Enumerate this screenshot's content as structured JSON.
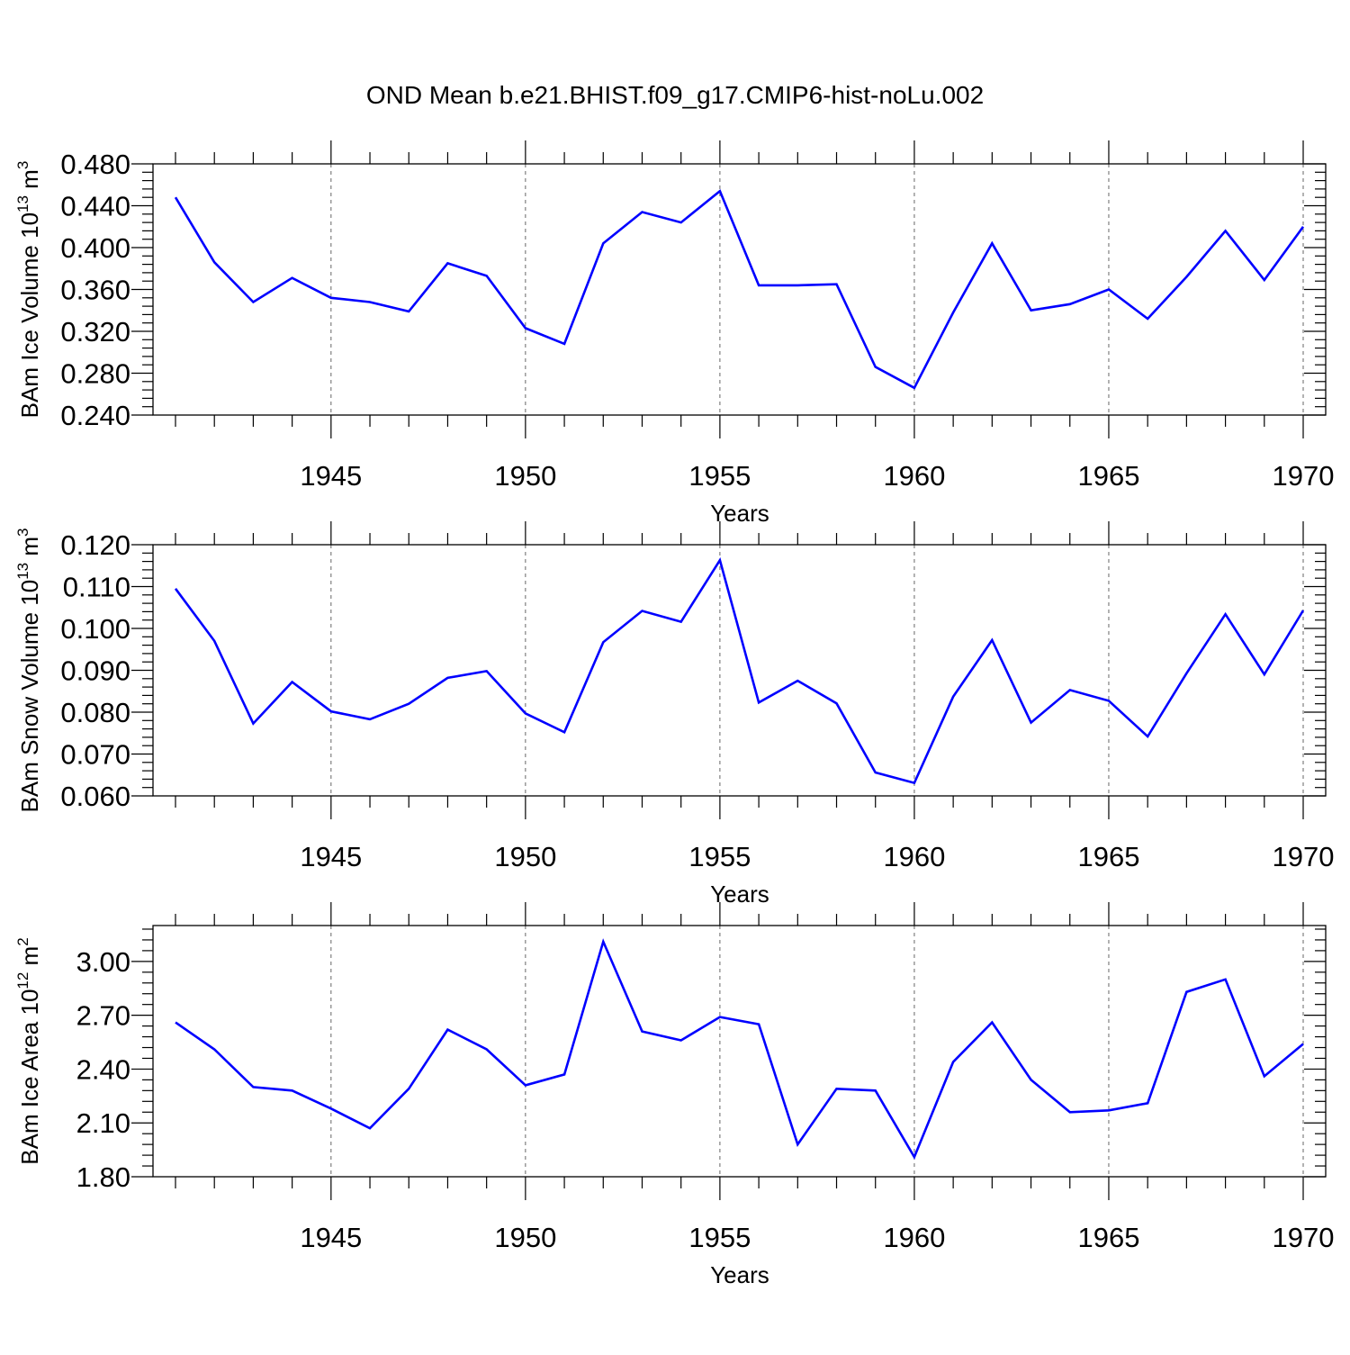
{
  "title": "OND Mean b.e21.BHIST.f09_g17.CMIP6-hist-noLu.002",
  "line_color": "#0000ff",
  "chart_data": [
    {
      "type": "line",
      "ylabel": "BAm Ice Volume 10",
      "ylabel_exp": "13",
      "ylabel_unit": " m",
      "ylabel_unit_exp": "3",
      "xlabel": "Years",
      "xlim": [
        1941,
        1970
      ],
      "ylim": [
        0.24,
        0.48
      ],
      "yticks": [
        "0.240",
        "0.280",
        "0.320",
        "0.360",
        "0.400",
        "0.440",
        "0.480"
      ],
      "ytick_values": [
        0.24,
        0.28,
        0.32,
        0.36,
        0.4,
        0.44,
        0.48
      ],
      "xticks": [
        "1945",
        "1950",
        "1955",
        "1960",
        "1965",
        "1970"
      ],
      "xtick_values": [
        1945,
        1950,
        1955,
        1960,
        1965,
        1970
      ],
      "series": [
        {
          "name": "BAm Ice Volume",
          "x": [
            1941,
            1942,
            1943,
            1944,
            1945,
            1946,
            1947,
            1948,
            1949,
            1950,
            1951,
            1952,
            1953,
            1954,
            1955,
            1956,
            1957,
            1958,
            1959,
            1960,
            1961,
            1962,
            1963,
            1964,
            1965,
            1966,
            1967,
            1968,
            1969,
            1970
          ],
          "values": [
            0.448,
            0.386,
            0.348,
            0.371,
            0.352,
            0.348,
            0.339,
            0.385,
            0.373,
            0.323,
            0.308,
            0.404,
            0.434,
            0.424,
            0.454,
            0.364,
            0.364,
            0.365,
            0.286,
            0.266,
            0.338,
            0.404,
            0.34,
            0.346,
            0.36,
            0.332,
            0.372,
            0.416,
            0.369,
            0.42
          ]
        }
      ]
    },
    {
      "type": "line",
      "ylabel": "BAm Snow Volume 10",
      "ylabel_exp": "13",
      "ylabel_unit": " m",
      "ylabel_unit_exp": "3",
      "xlabel": "Years",
      "xlim": [
        1941,
        1970
      ],
      "ylim": [
        0.06,
        0.12
      ],
      "yticks": [
        "0.060",
        "0.070",
        "0.080",
        "0.090",
        "0.100",
        "0.110",
        "0.120"
      ],
      "ytick_values": [
        0.06,
        0.07,
        0.08,
        0.09,
        0.1,
        0.11,
        0.12
      ],
      "xticks": [
        "1945",
        "1950",
        "1955",
        "1960",
        "1965",
        "1970"
      ],
      "xtick_values": [
        1945,
        1950,
        1955,
        1960,
        1965,
        1970
      ],
      "series": [
        {
          "name": "BAm Snow Volume",
          "x": [
            1941,
            1942,
            1943,
            1944,
            1945,
            1946,
            1947,
            1948,
            1949,
            1950,
            1951,
            1952,
            1953,
            1954,
            1955,
            1956,
            1957,
            1958,
            1959,
            1960,
            1961,
            1962,
            1963,
            1964,
            1965,
            1966,
            1967,
            1968,
            1969,
            1970
          ],
          "values": [
            0.1095,
            0.097,
            0.0773,
            0.0872,
            0.0802,
            0.0783,
            0.082,
            0.0882,
            0.0898,
            0.0797,
            0.0752,
            0.0967,
            0.1042,
            0.1016,
            0.1163,
            0.0823,
            0.0875,
            0.0821,
            0.0656,
            0.0631,
            0.0837,
            0.0972,
            0.0775,
            0.0853,
            0.0827,
            0.0742,
            0.0893,
            0.1034,
            0.089,
            0.1043
          ]
        }
      ]
    },
    {
      "type": "line",
      "ylabel": "BAm Ice Area 10",
      "ylabel_exp": "12",
      "ylabel_unit": " m",
      "ylabel_unit_exp": "2",
      "xlabel": "Years",
      "xlim": [
        1941,
        1970
      ],
      "ylim": [
        1.8,
        3.2
      ],
      "yticks": [
        "1.80",
        "2.10",
        "2.40",
        "2.70",
        "3.00"
      ],
      "ytick_values": [
        1.8,
        2.1,
        2.4,
        2.7,
        3.0
      ],
      "xticks": [
        "1945",
        "1950",
        "1955",
        "1960",
        "1965",
        "1970"
      ],
      "xtick_values": [
        1945,
        1950,
        1955,
        1960,
        1965,
        1970
      ],
      "series": [
        {
          "name": "BAm Ice Area",
          "x": [
            1941,
            1942,
            1943,
            1944,
            1945,
            1946,
            1947,
            1948,
            1949,
            1950,
            1951,
            1952,
            1953,
            1954,
            1955,
            1956,
            1957,
            1958,
            1959,
            1960,
            1961,
            1962,
            1963,
            1964,
            1965,
            1966,
            1967,
            1968,
            1969,
            1970
          ],
          "values": [
            2.66,
            2.51,
            2.3,
            2.28,
            2.18,
            2.07,
            2.29,
            2.62,
            2.51,
            2.31,
            2.37,
            3.11,
            2.61,
            2.56,
            2.69,
            2.65,
            1.98,
            2.29,
            2.28,
            1.91,
            2.44,
            2.66,
            2.34,
            2.16,
            2.17,
            2.21,
            2.83,
            2.9,
            2.36,
            2.54
          ]
        }
      ]
    }
  ]
}
